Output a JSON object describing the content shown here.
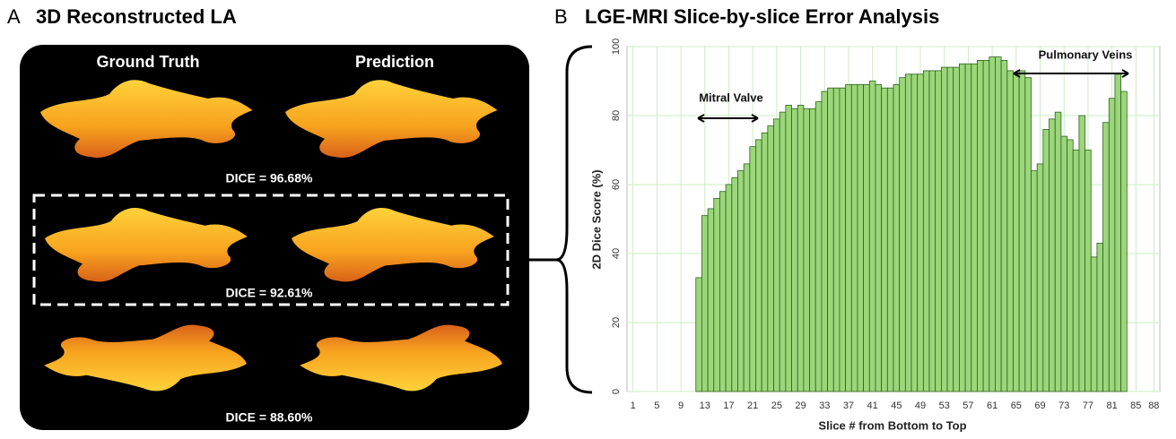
{
  "panel_a": {
    "letter": "A",
    "title": "3D Reconstructed LA",
    "columns": [
      "Ground Truth",
      "Prediction"
    ],
    "dice": [
      "DICE = 96.68%",
      "DICE = 92.61%",
      "DICE = 88.60%"
    ]
  },
  "chart_data": {
    "type": "bar",
    "panel_label": "B",
    "title": "LGE-MRI Slice-by-slice Error Analysis",
    "x_label": "Slice # from Bottom to Top",
    "y_label": "2D Dice Score (%)",
    "annotations": [
      "Mitral Valve",
      "Pulmonary Veins"
    ],
    "x": [
      12,
      13,
      14,
      15,
      16,
      17,
      18,
      19,
      20,
      21,
      22,
      23,
      24,
      25,
      26,
      27,
      28,
      29,
      30,
      31,
      32,
      33,
      34,
      35,
      36,
      37,
      38,
      39,
      40,
      41,
      42,
      43,
      44,
      45,
      46,
      47,
      48,
      49,
      50,
      51,
      52,
      53,
      54,
      55,
      56,
      57,
      58,
      59,
      60,
      61,
      62,
      63,
      64,
      65,
      66,
      67,
      68,
      69,
      70,
      71,
      72,
      73,
      74,
      75,
      76,
      77,
      78,
      79,
      80,
      81,
      82,
      83
    ],
    "values": [
      33,
      51,
      53,
      56,
      58,
      60,
      62,
      64,
      66,
      71,
      73,
      75,
      77,
      79,
      81,
      83,
      82,
      83,
      82,
      82,
      84,
      87,
      88,
      88,
      88,
      89,
      89,
      89,
      89,
      90,
      89,
      88,
      88,
      89,
      91,
      92,
      92,
      92,
      93,
      93,
      93,
      94,
      94,
      94,
      95,
      95,
      95,
      96,
      96,
      97,
      97,
      96,
      93,
      92,
      93,
      91,
      64,
      66,
      76,
      79,
      81,
      74,
      73,
      70,
      80,
      70,
      39,
      43,
      78,
      85,
      92,
      87
    ],
    "color": "#9bd77a",
    "xlim": [
      0,
      89
    ],
    "xticks": [
      1,
      5,
      9,
      13,
      17,
      21,
      25,
      29,
      33,
      37,
      41,
      45,
      49,
      53,
      57,
      61,
      65,
      69,
      73,
      77,
      81,
      85,
      88
    ],
    "ylim": [
      0,
      100
    ],
    "yticks": [
      0,
      20,
      40,
      60,
      80,
      100
    ],
    "grid": true
  }
}
